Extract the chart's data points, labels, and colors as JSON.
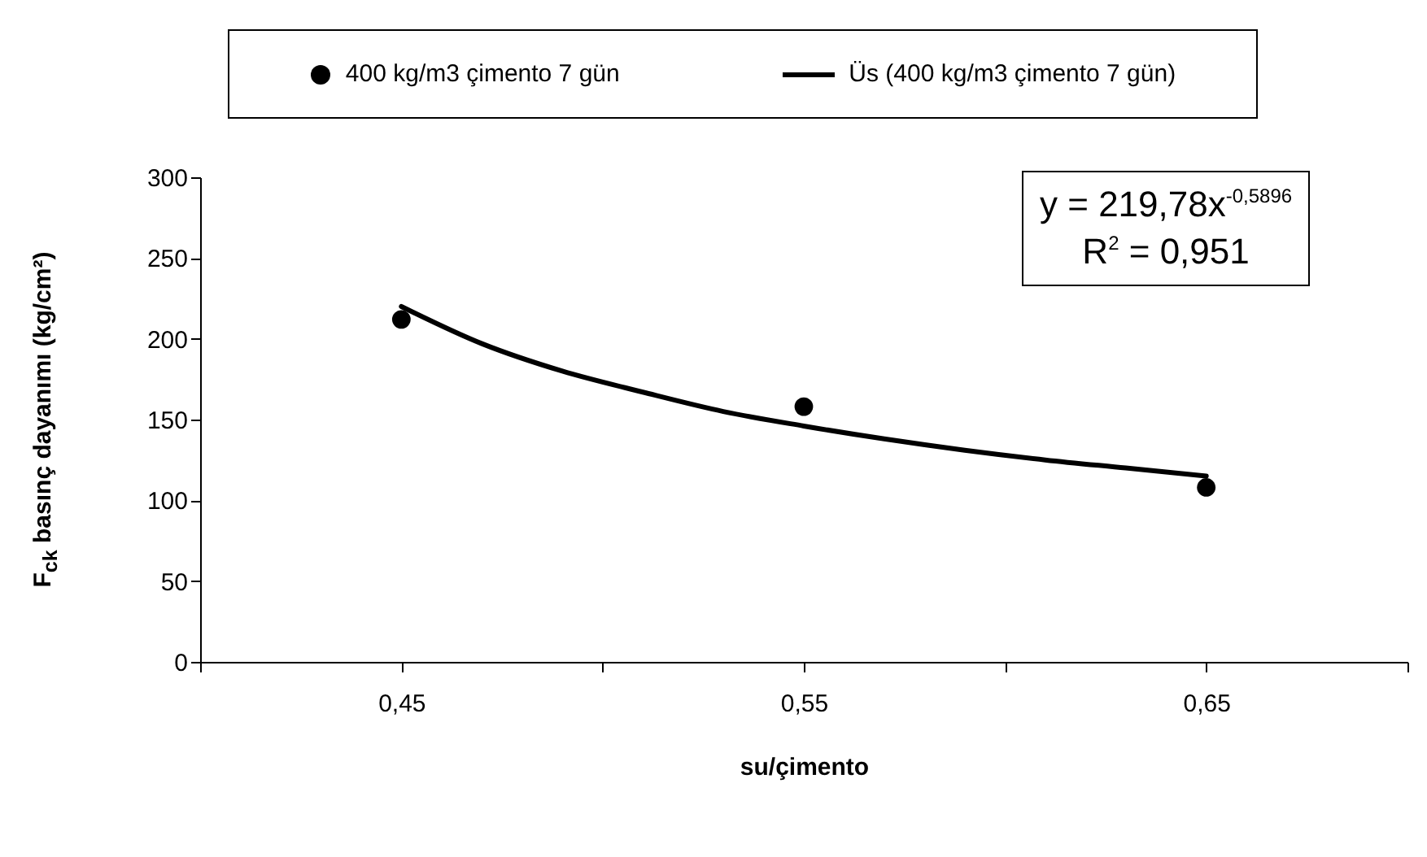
{
  "chart_data": {
    "type": "scatter",
    "xlabel": "su/çimento",
    "ylabel": "F$_{ck}$ basınç dayanımı (kg/cm²)",
    "xlim": [
      0.4,
      0.7
    ],
    "xticks": [
      {
        "value": 0.4,
        "label": null
      },
      {
        "value": 0.45,
        "label": "0,45"
      },
      {
        "value": 0.5,
        "label": null
      },
      {
        "value": 0.55,
        "label": "0,55"
      },
      {
        "value": 0.6,
        "label": null
      },
      {
        "value": 0.65,
        "label": "0,65"
      },
      {
        "value": 0.7,
        "label": null
      }
    ],
    "ylim": [
      0,
      300
    ],
    "yticks": [
      0,
      50,
      100,
      150,
      200,
      250,
      300
    ],
    "grid": false,
    "legend": "top",
    "marker": "circle",
    "annotations": [
      "y = 219,78x$^{-0,5896}$",
      "R$^{2}$ = 0,951"
    ],
    "series": [
      {
        "name": "400 kg/m3 çimento 7 gün",
        "color": "#000000",
        "x": [
          0.45,
          0.55,
          0.65
        ],
        "values": [
          212,
          158,
          108
        ]
      },
      {
        "name": "Üs (400 kg/m3 çimento 7 gün)",
        "type": "line",
        "marker": "none",
        "color": "#000000",
        "line_style": "solid",
        "x": [
          0.45,
          0.47,
          0.49,
          0.51,
          0.53,
          0.55,
          0.57,
          0.59,
          0.61,
          0.63,
          0.65
        ],
        "values": [
          220,
          197,
          180,
          167,
          155,
          146,
          138,
          131,
          125,
          120,
          115
        ]
      }
    ]
  }
}
